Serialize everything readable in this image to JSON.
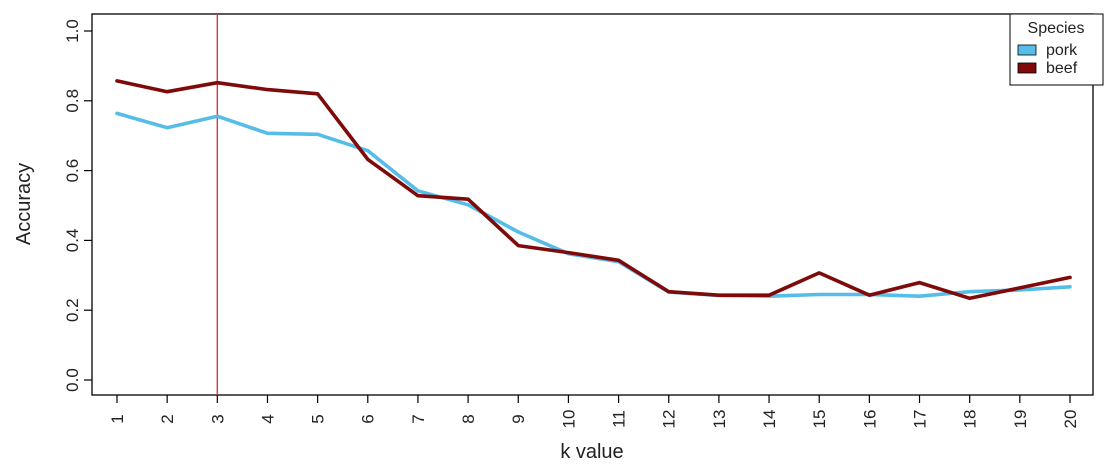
{
  "chart_data": {
    "type": "line",
    "xlabel": "k value",
    "ylabel": "Accuracy",
    "x": [
      1,
      2,
      3,
      4,
      5,
      6,
      7,
      8,
      9,
      10,
      11,
      12,
      13,
      14,
      15,
      16,
      17,
      18,
      19,
      20
    ],
    "x_tick_labels": [
      "1",
      "2",
      "3",
      "4",
      "5",
      "6",
      "7",
      "8",
      "9",
      "10",
      "11",
      "12",
      "13",
      "14",
      "15",
      "16",
      "17",
      "18",
      "19",
      "20"
    ],
    "ylim": [
      0,
      1
    ],
    "y_ticks": [
      0.0,
      0.2,
      0.4,
      0.6,
      0.8,
      1.0
    ],
    "y_tick_labels": [
      "0.0",
      "0.2",
      "0.4",
      "0.6",
      "0.8",
      "1.0"
    ],
    "grid": false,
    "legend": {
      "title": "Species",
      "position": "top-right"
    },
    "series": [
      {
        "name": "pork",
        "color": "#56bde8",
        "values": [
          0.764,
          0.723,
          0.756,
          0.707,
          0.704,
          0.657,
          0.542,
          0.502,
          0.424,
          0.362,
          0.339,
          0.252,
          0.242,
          0.24,
          0.245,
          0.245,
          0.24,
          0.253,
          0.258,
          0.267
        ]
      },
      {
        "name": "beef",
        "color": "#7f0a0a",
        "values": [
          0.857,
          0.826,
          0.852,
          0.832,
          0.82,
          0.632,
          0.528,
          0.518,
          0.385,
          0.365,
          0.343,
          0.253,
          0.243,
          0.243,
          0.307,
          0.243,
          0.279,
          0.234,
          0.264,
          0.294
        ]
      }
    ],
    "annotations": [
      {
        "type": "vline",
        "x": 3,
        "color": "#e0353a"
      }
    ]
  }
}
